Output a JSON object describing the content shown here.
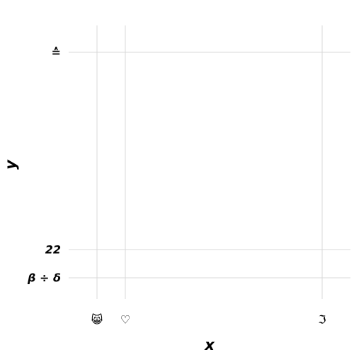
{
  "chart_data": {
    "type": "scatter",
    "xlabel": "x",
    "ylabel": "y",
    "grid": true,
    "x_ticks": [
      "😸",
      "♡",
      "ℑ"
    ],
    "y_ticks": [
      "≙",
      "22",
      "β ÷ δ"
    ],
    "series": [
      {
        "points": []
      }
    ]
  }
}
